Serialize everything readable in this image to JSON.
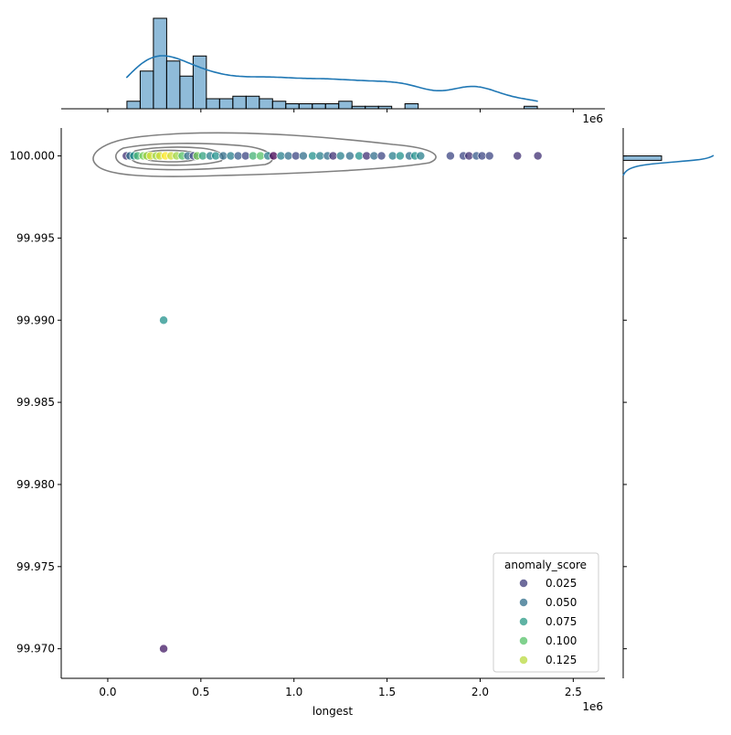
{
  "chart_data": {
    "type": "scatter",
    "subtype": "jointplot with marginal histograms, KDE curves and joint KDE contours",
    "xlabel": "longest",
    "ylabel": "",
    "x_offset_label": "1e6",
    "top_offset_label": "1e6",
    "xlim": [
      -0.25,
      2.67
    ],
    "ylim": [
      99.9682,
      100.0017
    ],
    "x_ticks": [
      "0.0",
      "0.5",
      "1.0",
      "1.5",
      "2.0",
      "2.5"
    ],
    "x_tick_values": [
      0,
      0.5,
      1.0,
      1.5,
      2.0,
      2.5
    ],
    "y_ticks": [
      "99.970",
      "99.975",
      "99.980",
      "99.985",
      "99.990",
      "99.995",
      "100.000"
    ],
    "y_tick_values": [
      99.97,
      99.975,
      99.98,
      99.985,
      99.99,
      99.995,
      100.0
    ],
    "grid": false,
    "legend": {
      "title": "anomaly_score",
      "position": "lower-right",
      "entries": [
        "0.025",
        "0.050",
        "0.075",
        "0.100",
        "0.125"
      ],
      "values": [
        0.025,
        0.05,
        0.075,
        0.1,
        0.125
      ]
    },
    "hue_range": [
      0,
      0.14
    ],
    "colormap": "viridis",
    "points": [
      {
        "x": 0.1,
        "y": 100,
        "h": 0.02
      },
      {
        "x": 0.12,
        "y": 100,
        "h": 0.05
      },
      {
        "x": 0.14,
        "y": 100,
        "h": 0.07
      },
      {
        "x": 0.16,
        "y": 100,
        "h": 0.09
      },
      {
        "x": 0.19,
        "y": 100,
        "h": 0.11
      },
      {
        "x": 0.21,
        "y": 100,
        "h": 0.12
      },
      {
        "x": 0.23,
        "y": 100,
        "h": 0.13
      },
      {
        "x": 0.26,
        "y": 100,
        "h": 0.12
      },
      {
        "x": 0.28,
        "y": 100,
        "h": 0.13
      },
      {
        "x": 0.31,
        "y": 100,
        "h": 0.14
      },
      {
        "x": 0.34,
        "y": 100,
        "h": 0.13
      },
      {
        "x": 0.37,
        "y": 100,
        "h": 0.12
      },
      {
        "x": 0.4,
        "y": 100,
        "h": 0.1
      },
      {
        "x": 0.43,
        "y": 100,
        "h": 0.05
      },
      {
        "x": 0.46,
        "y": 100,
        "h": 0.03
      },
      {
        "x": 0.48,
        "y": 100,
        "h": 0.11
      },
      {
        "x": 0.51,
        "y": 100,
        "h": 0.08
      },
      {
        "x": 0.55,
        "y": 100,
        "h": 0.06
      },
      {
        "x": 0.58,
        "y": 100,
        "h": 0.07
      },
      {
        "x": 0.62,
        "y": 100,
        "h": 0.05
      },
      {
        "x": 0.66,
        "y": 100,
        "h": 0.06
      },
      {
        "x": 0.7,
        "y": 100,
        "h": 0.04
      },
      {
        "x": 0.74,
        "y": 100,
        "h": 0.03
      },
      {
        "x": 0.78,
        "y": 100,
        "h": 0.09
      },
      {
        "x": 0.82,
        "y": 100,
        "h": 0.1
      },
      {
        "x": 0.86,
        "y": 100,
        "h": 0.06
      },
      {
        "x": 0.89,
        "y": 100,
        "h": 0.0
      },
      {
        "x": 0.93,
        "y": 100,
        "h": 0.06
      },
      {
        "x": 0.97,
        "y": 100,
        "h": 0.05
      },
      {
        "x": 1.01,
        "y": 100,
        "h": 0.03
      },
      {
        "x": 1.05,
        "y": 100,
        "h": 0.05
      },
      {
        "x": 1.1,
        "y": 100,
        "h": 0.07
      },
      {
        "x": 1.14,
        "y": 100,
        "h": 0.06
      },
      {
        "x": 1.18,
        "y": 100,
        "h": 0.05
      },
      {
        "x": 1.21,
        "y": 100,
        "h": 0.02
      },
      {
        "x": 1.25,
        "y": 100,
        "h": 0.06
      },
      {
        "x": 1.3,
        "y": 100,
        "h": 0.05
      },
      {
        "x": 1.35,
        "y": 100,
        "h": 0.07
      },
      {
        "x": 1.39,
        "y": 100,
        "h": 0.02
      },
      {
        "x": 1.43,
        "y": 100,
        "h": 0.05
      },
      {
        "x": 1.47,
        "y": 100,
        "h": 0.03
      },
      {
        "x": 1.53,
        "y": 100,
        "h": 0.06
      },
      {
        "x": 1.57,
        "y": 100,
        "h": 0.07
      },
      {
        "x": 1.62,
        "y": 100,
        "h": 0.05
      },
      {
        "x": 1.65,
        "y": 100,
        "h": 0.07
      },
      {
        "x": 1.68,
        "y": 100,
        "h": 0.06
      },
      {
        "x": 1.84,
        "y": 100,
        "h": 0.03
      },
      {
        "x": 1.91,
        "y": 100,
        "h": 0.03
      },
      {
        "x": 1.94,
        "y": 100,
        "h": 0.02
      },
      {
        "x": 1.98,
        "y": 100,
        "h": 0.04
      },
      {
        "x": 2.01,
        "y": 100,
        "h": 0.03
      },
      {
        "x": 2.05,
        "y": 100,
        "h": 0.03
      },
      {
        "x": 2.2,
        "y": 100,
        "h": 0.02
      },
      {
        "x": 2.31,
        "y": 100,
        "h": 0.02
      },
      {
        "x": 0.3,
        "y": 99.99,
        "h": 0.07
      },
      {
        "x": 0.3,
        "y": 99.97,
        "h": 0.01
      }
    ],
    "top_histogram": {
      "bin_start": 0.103,
      "bin_width": 0.0711,
      "counts": [
        3,
        15,
        36,
        19,
        13,
        21,
        4,
        4,
        5,
        5,
        4,
        3,
        2,
        2,
        2,
        2,
        3,
        1,
        1,
        1,
        0,
        2,
        0,
        0,
        0,
        0,
        0,
        0,
        0,
        0,
        1,
        0
      ]
    },
    "right_histogram": {
      "bins": [
        [
          99.99973,
          100.0
        ]
      ],
      "counts": [
        54
      ]
    },
    "bar_color": "#1f77b4",
    "kde_color": "#1f77b4",
    "contour_color": "#808080"
  }
}
